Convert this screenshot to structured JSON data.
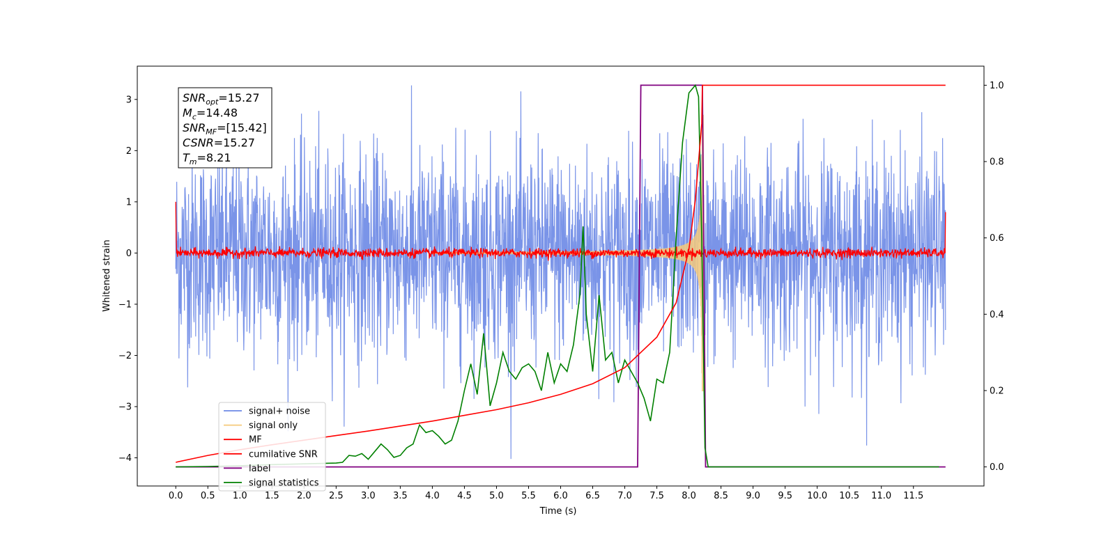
{
  "chart_data": {
    "type": "line",
    "title": "",
    "xlabel": "Time (s)",
    "ylabel": "Whitened strain",
    "xlim": [
      -0.6,
      12.6
    ],
    "ylim": [
      -4.55,
      3.65
    ],
    "y2lim": [
      -0.05,
      1.05
    ],
    "x_ticks": [
      "0.0",
      "0.5",
      "1.0",
      "1.5",
      "2.0",
      "2.5",
      "3.0",
      "3.5",
      "4.0",
      "4.5",
      "5.0",
      "5.5",
      "6.0",
      "6.5",
      "7.0",
      "7.5",
      "8.0",
      "8.5",
      "9.0",
      "9.5",
      "10.0",
      "10.5",
      "11.0",
      "11.5"
    ],
    "y_ticks": [
      "3",
      "2",
      "1",
      "0",
      "−1",
      "−2",
      "−3",
      "−4"
    ],
    "y2_ticks": [
      "1.0",
      "0.8",
      "0.6",
      "0.4",
      "0.2",
      "0.0"
    ],
    "grid": false,
    "legend_position": "lower-left",
    "info_box": {
      "lines": [
        {
          "sym": "SNR",
          "sub": "opt",
          "value": "=15.27"
        },
        {
          "sym": "M",
          "sub": "c",
          "value": "=14.48"
        },
        {
          "sym": "SNR",
          "sub": "MF",
          "value": "=[15.42]"
        },
        {
          "sym": "CSNR",
          "sub": "",
          "value": "=15.27"
        },
        {
          "sym": "T",
          "sub": "m",
          "value": "=8.21"
        }
      ]
    },
    "series": [
      {
        "name": "signal+ noise",
        "color": "#6b88e6",
        "axis": "left",
        "description": "whitened noise, approx. amplitude ±3 over 0–12 s"
      },
      {
        "name": "signal only",
        "color": "#f5c97a",
        "axis": "left",
        "chirp_end": 8.21,
        "peak_amplitude": 2.7
      },
      {
        "name": "MF",
        "color": "#ff0000",
        "axis": "left",
        "description": "matched filter output near 0 with small fluctuations"
      },
      {
        "name": "cumilative SNR",
        "color": "#ff0000",
        "axis": "right",
        "x": [
          0.0,
          0.5,
          1.0,
          1.5,
          2.0,
          2.5,
          3.0,
          3.5,
          4.0,
          4.5,
          5.0,
          5.5,
          6.0,
          6.5,
          7.0,
          7.5,
          7.8,
          8.0,
          8.1,
          8.2,
          8.21,
          12.0
        ],
        "y": [
          0.012,
          0.03,
          0.045,
          0.058,
          0.07,
          0.082,
          0.094,
          0.107,
          0.12,
          0.135,
          0.15,
          0.168,
          0.19,
          0.218,
          0.26,
          0.34,
          0.43,
          0.57,
          0.7,
          0.9,
          1.0,
          1.0
        ]
      },
      {
        "name": "label",
        "color": "#800080",
        "axis": "right",
        "x": [
          0.0,
          7.2,
          7.25,
          8.21,
          8.26,
          12.0
        ],
        "y": [
          0.0,
          0.0,
          1.0,
          1.0,
          0.0,
          0.0
        ]
      },
      {
        "name": "signal statistics",
        "color": "#008000",
        "axis": "right",
        "x": [
          0.0,
          0.5,
          1.0,
          1.5,
          2.0,
          2.5,
          2.6,
          2.7,
          2.8,
          2.9,
          3.0,
          3.1,
          3.2,
          3.3,
          3.4,
          3.5,
          3.6,
          3.7,
          3.8,
          3.9,
          4.0,
          4.1,
          4.2,
          4.3,
          4.4,
          4.5,
          4.6,
          4.7,
          4.8,
          4.9,
          5.0,
          5.1,
          5.2,
          5.3,
          5.4,
          5.5,
          5.6,
          5.7,
          5.8,
          5.9,
          6.0,
          6.1,
          6.2,
          6.3,
          6.35,
          6.4,
          6.5,
          6.6,
          6.7,
          6.8,
          6.9,
          7.0,
          7.1,
          7.2,
          7.3,
          7.4,
          7.5,
          7.6,
          7.7,
          7.8,
          7.9,
          8.0,
          8.1,
          8.15,
          8.2,
          8.25,
          8.3,
          8.4,
          9.0,
          10.0,
          11.0,
          11.9
        ],
        "y": [
          0.0,
          0.001,
          0.003,
          0.006,
          0.008,
          0.01,
          0.012,
          0.03,
          0.028,
          0.035,
          0.02,
          0.04,
          0.06,
          0.045,
          0.025,
          0.03,
          0.05,
          0.06,
          0.11,
          0.09,
          0.095,
          0.08,
          0.06,
          0.07,
          0.12,
          0.2,
          0.27,
          0.19,
          0.35,
          0.16,
          0.22,
          0.3,
          0.25,
          0.23,
          0.26,
          0.27,
          0.25,
          0.2,
          0.3,
          0.22,
          0.27,
          0.25,
          0.32,
          0.45,
          0.63,
          0.4,
          0.25,
          0.45,
          0.28,
          0.3,
          0.22,
          0.28,
          0.25,
          0.22,
          0.18,
          0.12,
          0.23,
          0.22,
          0.3,
          0.6,
          0.85,
          0.98,
          1.0,
          0.97,
          0.6,
          0.05,
          0.0,
          0.0,
          0.0,
          0.0,
          0.0,
          0.0
        ]
      }
    ]
  }
}
